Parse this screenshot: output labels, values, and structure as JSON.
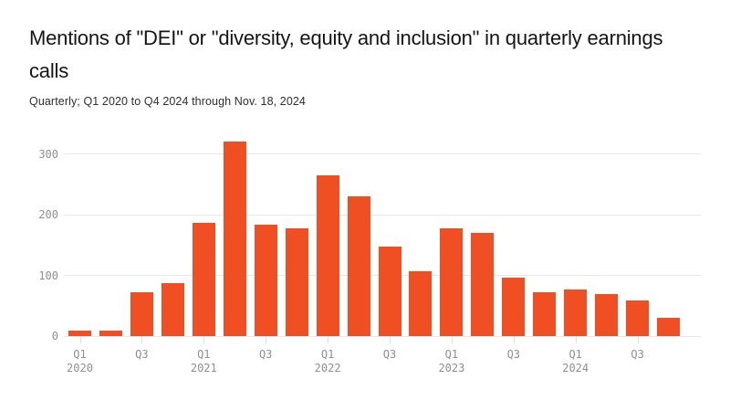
{
  "header": {
    "title": "Mentions of \"DEI\" or \"diversity, equity and inclusion\" in quarterly earnings calls",
    "subtitle": "Quarterly; Q1 2020 to Q4 2024 through Nov. 18, 2024"
  },
  "colors": {
    "bar": "#F04E23",
    "gridline": "#e7e7e7",
    "axis_text": "#8f8f8f",
    "title_text": "#141414",
    "background": "#ffffff"
  },
  "chart_data": {
    "type": "bar",
    "title": "Mentions of \"DEI\" or \"diversity, equity and inclusion\" in quarterly earnings calls",
    "subtitle": "Quarterly; Q1 2020 to Q4 2024 through Nov. 18, 2024",
    "categories": [
      "Q1 2020",
      "Q2 2020",
      "Q3 2020",
      "Q4 2020",
      "Q1 2021",
      "Q2 2021",
      "Q3 2021",
      "Q4 2021",
      "Q1 2022",
      "Q2 2022",
      "Q3 2022",
      "Q4 2022",
      "Q1 2023",
      "Q2 2023",
      "Q3 2023",
      "Q4 2023",
      "Q1 2024",
      "Q2 2024",
      "Q3 2024",
      "Q4 2024"
    ],
    "values": [
      9,
      9,
      72,
      88,
      187,
      321,
      184,
      178,
      265,
      231,
      147,
      107,
      178,
      170,
      96,
      72,
      77,
      69,
      59,
      30
    ],
    "xlabel": "",
    "ylabel": "",
    "ylim": [
      0,
      335
    ],
    "yticks": [
      0,
      100,
      200,
      300
    ],
    "grid": "horizontal",
    "legend": "none",
    "xticks": [
      {
        "index": 0,
        "label": "Q1",
        "year": "2020"
      },
      {
        "index": 2,
        "label": "Q3"
      },
      {
        "index": 4,
        "label": "Q1",
        "year": "2021"
      },
      {
        "index": 6,
        "label": "Q3"
      },
      {
        "index": 8,
        "label": "Q1",
        "year": "2022"
      },
      {
        "index": 10,
        "label": "Q3"
      },
      {
        "index": 12,
        "label": "Q1",
        "year": "2023"
      },
      {
        "index": 14,
        "label": "Q3"
      },
      {
        "index": 16,
        "label": "Q1",
        "year": "2024"
      },
      {
        "index": 18,
        "label": "Q3"
      }
    ]
  }
}
